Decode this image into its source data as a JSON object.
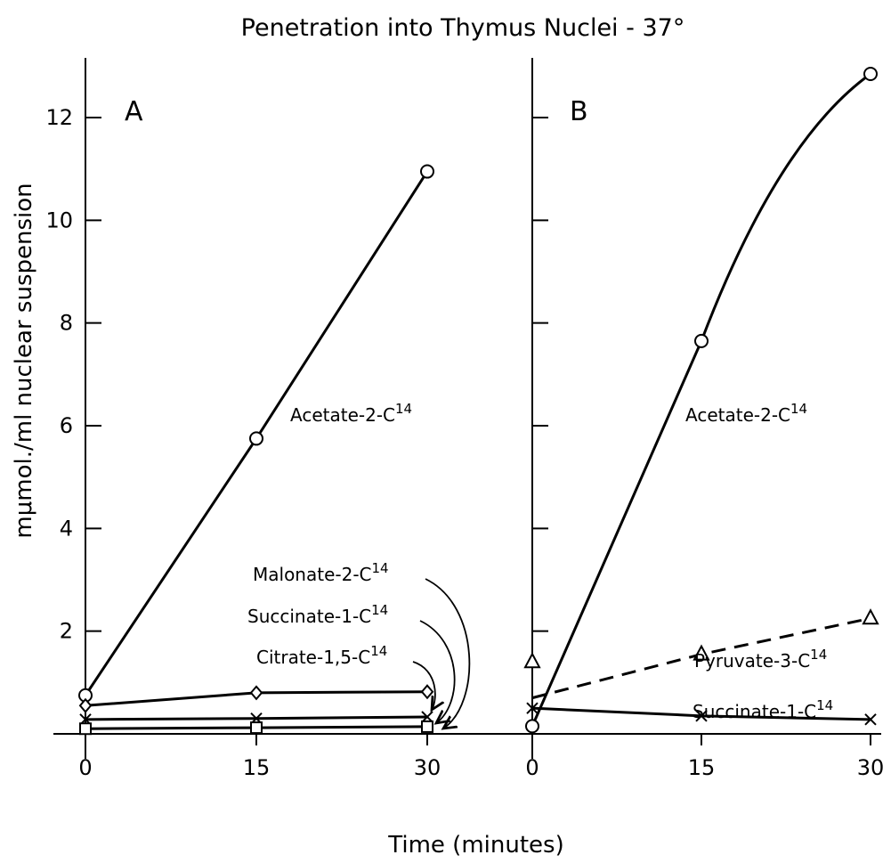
{
  "title": "Penetration into Thymus Nuclei - 37°",
  "chart_data": {
    "type": "line",
    "title": "Penetration into Thymus Nuclei - 37°",
    "xlabel": "Time (minutes)",
    "ylabel": "mμmol./ml nuclear suspension",
    "ylim": [
      0,
      13
    ],
    "yticks": [
      0,
      2,
      4,
      6,
      8,
      10,
      12
    ],
    "ytick_labels": [
      "2",
      "4",
      "6",
      "8",
      "10",
      "12"
    ],
    "xlim": [
      0,
      30
    ],
    "xticks": [
      0,
      15,
      30
    ],
    "grid": false,
    "panels": [
      {
        "label": "A",
        "xtick_labels": [
          "0",
          "15",
          "30"
        ],
        "series": [
          {
            "name": "Acetate-2-C14",
            "base": "Acetate-2-C",
            "iso": "14",
            "marker": "circle",
            "dash": false,
            "x": [
              0,
              15,
              30
            ],
            "y": [
              0.75,
              5.75,
              10.95
            ]
          },
          {
            "name": "Citrate-1,5-C14",
            "base": "Citrate-1,5-C",
            "iso": "14",
            "marker": "diamond",
            "dash": false,
            "x": [
              0,
              15,
              30
            ],
            "y": [
              0.55,
              0.8,
              0.82
            ]
          },
          {
            "name": "Succinate-1-C14",
            "base": "Succinate-1-C",
            "iso": "14",
            "marker": "cross",
            "dash": false,
            "x": [
              0,
              15,
              30
            ],
            "y": [
              0.28,
              0.3,
              0.33
            ]
          },
          {
            "name": "Malonate-2-C14",
            "base": "Malonate-2-C",
            "iso": "14",
            "marker": "square",
            "dash": false,
            "x": [
              0,
              15,
              30
            ],
            "y": [
              0.1,
              0.12,
              0.14
            ]
          }
        ]
      },
      {
        "label": "B",
        "xtick_labels": [
          "0",
          "15",
          "30"
        ],
        "series": [
          {
            "name": "Acetate-2-C14",
            "base": "Acetate-2-C",
            "iso": "14",
            "marker": "circle",
            "dash": false,
            "x": [
              0,
              15,
              30
            ],
            "y": [
              0.15,
              7.65,
              12.85
            ]
          },
          {
            "name": "Pyruvate-3-C14",
            "base": "Pyruvate-3-C",
            "iso": "14",
            "marker": "triangle",
            "dash": true,
            "x": [
              0,
              15,
              30
            ],
            "y": [
              1.4,
              1.55,
              2.25
            ],
            "line_start": [
              0,
              0.7
            ]
          },
          {
            "name": "Succinate-1-C14",
            "base": "Succinate-1-C",
            "iso": "14",
            "marker": "cross",
            "dash": false,
            "x": [
              0,
              15,
              30
            ],
            "y": [
              0.5,
              0.35,
              0.28
            ]
          }
        ]
      }
    ]
  }
}
